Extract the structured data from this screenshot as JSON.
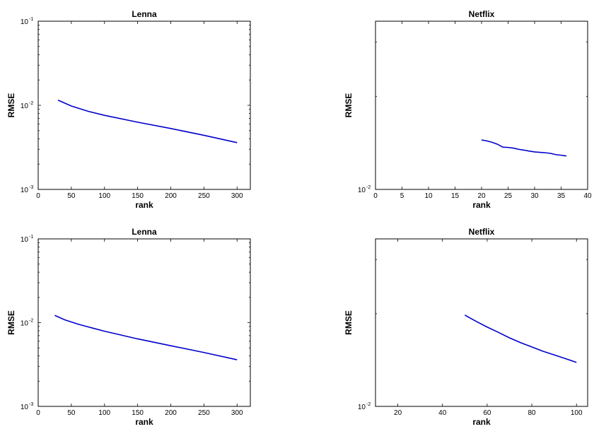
{
  "chart_data": [
    {
      "type": "line",
      "title": "Lenna",
      "xlabel": "rank",
      "ylabel": "RMSE",
      "yscale": "log",
      "xlim": [
        0,
        320
      ],
      "ylim": [
        0.001,
        0.1
      ],
      "xticks": [
        0,
        50,
        100,
        150,
        200,
        250,
        300
      ],
      "yticks": [
        {
          "base": "10",
          "exp": "-3",
          "value": 0.001
        },
        {
          "base": "10",
          "exp": "-2",
          "value": 0.01
        },
        {
          "base": "10",
          "exp": "-1",
          "value": 0.1
        }
      ],
      "grid": false,
      "series": [
        {
          "color": "#0000cc",
          "x": [
            30,
            50,
            75,
            100,
            150,
            200,
            250,
            300
          ],
          "y": [
            0.0115,
            0.0098,
            0.0085,
            0.0076,
            0.0063,
            0.0053,
            0.0044,
            0.0036
          ]
        }
      ]
    },
    {
      "type": "line",
      "title": "Netflix",
      "xlabel": "rank",
      "ylabel": "RMSE",
      "yscale": "log",
      "xlim": [
        0,
        40
      ],
      "ylim": [
        0.01,
        0.035
      ],
      "xticks": [
        0,
        5,
        10,
        15,
        20,
        25,
        30,
        35,
        40
      ],
      "yticks": [
        {
          "base": "10",
          "exp": "-2",
          "value": 0.01
        }
      ],
      "grid": false,
      "series": [
        {
          "color": "#0000cc",
          "x": [
            20,
            21,
            22,
            23,
            24,
            25,
            26,
            27,
            28,
            29,
            30,
            31,
            32,
            33,
            34,
            35,
            36
          ],
          "y": [
            0.01445,
            0.01435,
            0.0142,
            0.014,
            0.0137,
            0.01367,
            0.0136,
            0.01348,
            0.0134,
            0.0133,
            0.01322,
            0.01318,
            0.01314,
            0.01308,
            0.01296,
            0.0129,
            0.01283
          ]
        }
      ]
    },
    {
      "type": "line",
      "title": "Lenna",
      "xlabel": "rank",
      "ylabel": "RMSE",
      "yscale": "log",
      "xlim": [
        0,
        320
      ],
      "ylim": [
        0.001,
        0.1
      ],
      "xticks": [
        0,
        50,
        100,
        150,
        200,
        250,
        300
      ],
      "yticks": [
        {
          "base": "10",
          "exp": "-3",
          "value": 0.001
        },
        {
          "base": "10",
          "exp": "-2",
          "value": 0.01
        },
        {
          "base": "10",
          "exp": "-1",
          "value": 0.1
        }
      ],
      "grid": false,
      "series": [
        {
          "color": "#0000cc",
          "x": [
            25,
            40,
            60,
            80,
            100,
            150,
            200,
            250,
            300
          ],
          "y": [
            0.0122,
            0.0108,
            0.0096,
            0.0087,
            0.0079,
            0.0064,
            0.0053,
            0.0044,
            0.0036
          ]
        }
      ]
    },
    {
      "type": "line",
      "title": "Netflix",
      "xlabel": "rank",
      "ylabel": "RMSE",
      "yscale": "log",
      "xlim": [
        10,
        105
      ],
      "ylim": [
        0.01,
        0.035
      ],
      "xticks": [
        20,
        40,
        60,
        80,
        100
      ],
      "yticks": [
        {
          "base": "10",
          "exp": "-2",
          "value": 0.01
        }
      ],
      "grid": false,
      "series": [
        {
          "color": "#0000cc",
          "x": [
            50,
            55,
            60,
            65,
            70,
            75,
            80,
            85,
            90,
            95,
            100
          ],
          "y": [
            0.0198,
            0.0189,
            0.0181,
            0.0174,
            0.0167,
            0.0161,
            0.0156,
            0.0151,
            0.0147,
            0.0143,
            0.0139
          ]
        }
      ]
    }
  ]
}
